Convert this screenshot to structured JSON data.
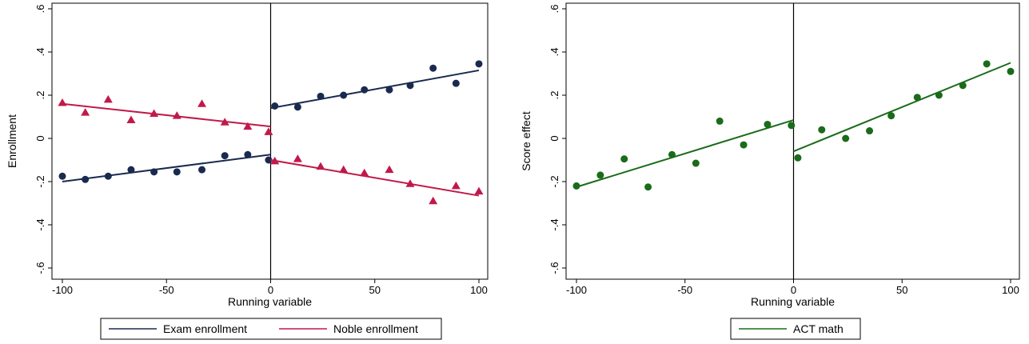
{
  "chart_data": [
    {
      "type": "scatter",
      "xlabel": "Running variable",
      "ylabel": "Enrollment",
      "xlim": [
        -100,
        100
      ],
      "ylim": [
        -0.6,
        0.6
      ],
      "xticks": [
        -100,
        -50,
        0,
        50,
        100
      ],
      "xtick_labels": [
        "-100",
        "-50",
        "0",
        "50",
        "100"
      ],
      "yticks": [
        -0.6,
        -0.4,
        -0.2,
        0,
        0.2,
        0.4,
        0.6
      ],
      "ytick_labels": [
        "-.6",
        "-.4",
        "-.2",
        "0",
        ".2",
        ".4",
        ".6"
      ],
      "grid": false,
      "cutoff": 0,
      "legend_position": "bottom",
      "series": [
        {
          "name": "Exam enrollment",
          "color": "#1a2a4f",
          "marker": "circle",
          "points": [
            [
              -100,
              -0.175
            ],
            [
              -89,
              -0.19
            ],
            [
              -78,
              -0.175
            ],
            [
              -67,
              -0.145
            ],
            [
              -56,
              -0.155
            ],
            [
              -45,
              -0.155
            ],
            [
              -33,
              -0.145
            ],
            [
              -22,
              -0.08
            ],
            [
              -11,
              -0.075
            ],
            [
              -1,
              -0.1
            ],
            [
              2,
              0.15
            ],
            [
              13,
              0.145
            ],
            [
              24,
              0.195
            ],
            [
              35,
              0.2
            ],
            [
              45,
              0.225
            ],
            [
              57,
              0.225
            ],
            [
              67,
              0.245
            ],
            [
              78,
              0.325
            ],
            [
              89,
              0.255
            ],
            [
              100,
              0.345
            ]
          ],
          "fit": [
            {
              "x": [
                -100,
                0
              ],
              "y": [
                -0.2,
                -0.075
              ]
            },
            {
              "x": [
                0,
                100
              ],
              "y": [
                0.14,
                0.315
              ]
            }
          ]
        },
        {
          "name": "Noble enrollment",
          "color": "#c0194a",
          "marker": "triangle",
          "points": [
            [
              -100,
              0.165
            ],
            [
              -89,
              0.12
            ],
            [
              -78,
              0.18
            ],
            [
              -67,
              0.085
            ],
            [
              -56,
              0.115
            ],
            [
              -45,
              0.105
            ],
            [
              -33,
              0.16
            ],
            [
              -22,
              0.075
            ],
            [
              -11,
              0.055
            ],
            [
              -1,
              0.03
            ],
            [
              2,
              -0.105
            ],
            [
              13,
              -0.095
            ],
            [
              24,
              -0.13
            ],
            [
              35,
              -0.145
            ],
            [
              45,
              -0.16
            ],
            [
              57,
              -0.145
            ],
            [
              67,
              -0.21
            ],
            [
              78,
              -0.29
            ],
            [
              89,
              -0.22
            ],
            [
              100,
              -0.245
            ]
          ],
          "fit": [
            {
              "x": [
                -100,
                0
              ],
              "y": [
                0.16,
                0.055
              ]
            },
            {
              "x": [
                0,
                100
              ],
              "y": [
                -0.1,
                -0.265
              ]
            }
          ]
        }
      ]
    },
    {
      "type": "scatter",
      "xlabel": "Running variable",
      "ylabel": "Score effect",
      "xlim": [
        -100,
        100
      ],
      "ylim": [
        -0.6,
        0.6
      ],
      "xticks": [
        -100,
        -50,
        0,
        50,
        100
      ],
      "xtick_labels": [
        "-100",
        "-50",
        "0",
        "50",
        "100"
      ],
      "yticks": [
        -0.6,
        -0.4,
        -0.2,
        0,
        0.2,
        0.4,
        0.6
      ],
      "ytick_labels": [
        "-.6",
        "-.4",
        "-.2",
        "0",
        ".2",
        ".4",
        ".6"
      ],
      "grid": false,
      "cutoff": 0,
      "legend_position": "bottom",
      "series": [
        {
          "name": "ACT math",
          "color": "#1a6b1a",
          "marker": "circle",
          "points": [
            [
              -100,
              -0.22
            ],
            [
              -89,
              -0.17
            ],
            [
              -78,
              -0.095
            ],
            [
              -67,
              -0.225
            ],
            [
              -56,
              -0.075
            ],
            [
              -45,
              -0.115
            ],
            [
              -34,
              0.08
            ],
            [
              -23,
              -0.03
            ],
            [
              -12,
              0.065
            ],
            [
              -1,
              0.06
            ],
            [
              2,
              -0.09
            ],
            [
              13,
              0.04
            ],
            [
              24,
              0.0
            ],
            [
              35,
              0.035
            ],
            [
              45,
              0.105
            ],
            [
              57,
              0.19
            ],
            [
              67,
              0.2
            ],
            [
              78,
              0.245
            ],
            [
              89,
              0.345
            ],
            [
              100,
              0.31
            ]
          ],
          "fit": [
            {
              "x": [
                -100,
                0
              ],
              "y": [
                -0.225,
                0.085
              ]
            },
            {
              "x": [
                0,
                100
              ],
              "y": [
                -0.06,
                0.35
              ]
            }
          ]
        }
      ]
    }
  ]
}
